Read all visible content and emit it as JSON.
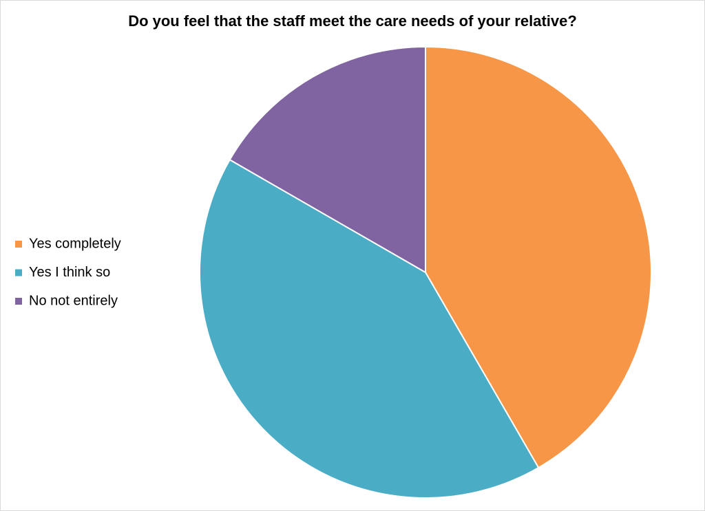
{
  "chart_data": {
    "type": "pie",
    "title": "Do you feel that the staff meet the care needs of your relative?",
    "categories": [
      "Yes completely",
      "Yes I think so",
      "No not entirely"
    ],
    "values": [
      41.7,
      41.7,
      16.7
    ],
    "colors": [
      "#f79646",
      "#4bacc6",
      "#8064a2"
    ],
    "legend": "left"
  }
}
